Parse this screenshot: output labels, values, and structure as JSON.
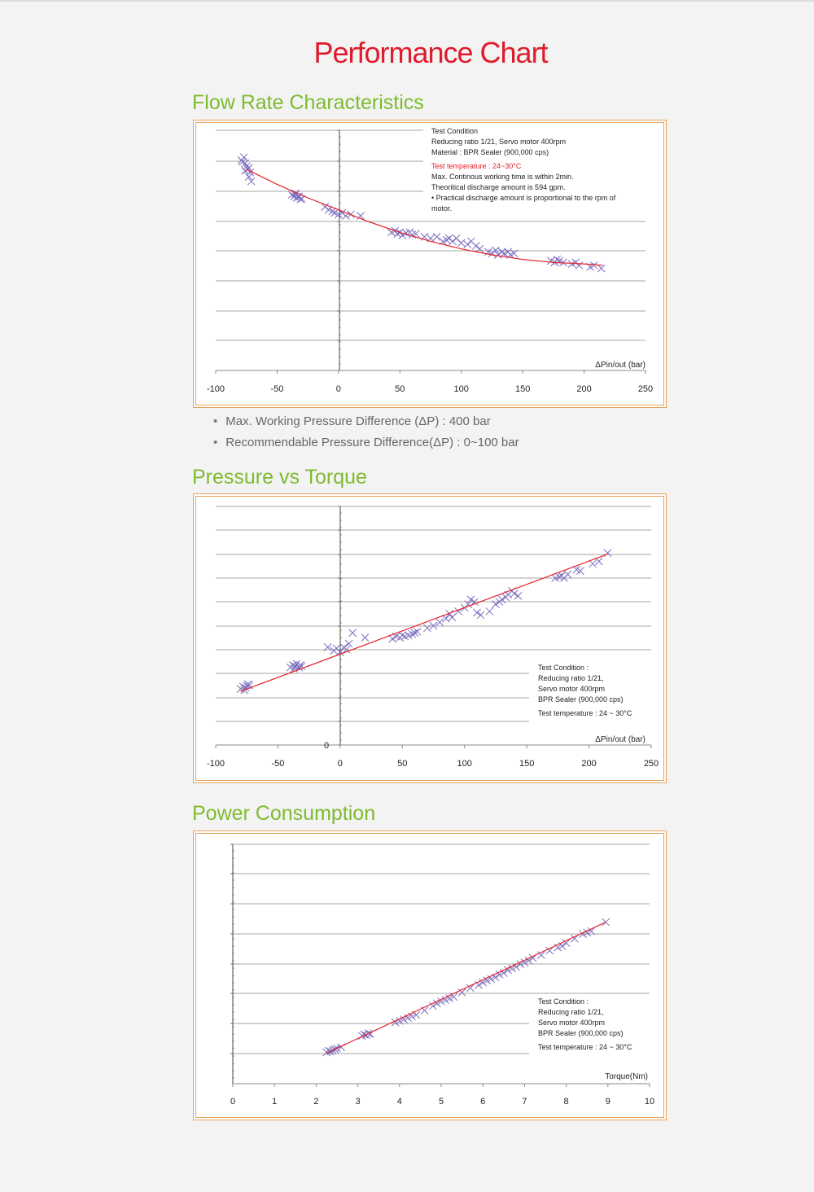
{
  "page": {
    "title": "Performance Chart"
  },
  "sections": [
    {
      "title": "Flow Rate Characteristics"
    },
    {
      "title": "Pressure vs Torque"
    },
    {
      "title": "Power Consumption"
    }
  ],
  "notes": [
    "Max. Working Pressure Difference (ΔP) : 400 bar",
    "Recommendable Pressure Difference(ΔP) : 0~100 bar"
  ],
  "colors": {
    "title": "#e01b2c",
    "section": "#7dbb2f",
    "frame": "#e7a25a",
    "marker": "#7b6fbf",
    "trend": "#e8202a",
    "grid": "#888888"
  },
  "chart_data": [
    {
      "type": "scatter",
      "xlabel": "ΔPin/out (bar)",
      "ylabel": "",
      "xlim": [
        -100,
        250
      ],
      "xticks": [
        -100,
        -50,
        0,
        50,
        100,
        150,
        200,
        250
      ],
      "ylim": [
        0,
        8
      ],
      "grid": true,
      "annotation_lines": [
        {
          "text": "Test Condition",
          "color": "#222222"
        },
        {
          "text": "Reducing ratio 1/21, Servo motor  400rpm",
          "color": "#222222"
        },
        {
          "text": "Material : BPR Sealer (900,000 cps)",
          "color": "#222222"
        },
        {
          "text": "Test temperature : 24~30°C",
          "color": "#e8202a"
        },
        {
          "text": "Max. Continous working time  is within 2min.",
          "color": "#222222"
        },
        {
          "text": "Theoritical discharge amount is 594 gpm.",
          "color": "#222222"
        },
        {
          "text": "• Practical discharge amount is proportional to the rpm of",
          "color": "#222222"
        },
        {
          "text": "   motor.",
          "color": "#222222"
        }
      ],
      "series": [
        {
          "kind": "markers",
          "points": [
            [
              -79,
              7.0
            ],
            [
              -77,
              7.1
            ],
            [
              -76,
              6.9
            ],
            [
              -78,
              6.95
            ],
            [
              -75,
              6.8
            ],
            [
              -74,
              6.7
            ],
            [
              -73,
              6.75
            ],
            [
              -72,
              6.6
            ],
            [
              -76,
              6.65
            ],
            [
              -73,
              6.45
            ],
            [
              -71,
              6.3
            ],
            [
              -38,
              5.85
            ],
            [
              -36,
              5.8
            ],
            [
              -35,
              5.85
            ],
            [
              -34,
              5.75
            ],
            [
              -33,
              5.8
            ],
            [
              -32,
              5.78
            ],
            [
              -31,
              5.7
            ],
            [
              -30,
              5.72
            ],
            [
              -35,
              5.9
            ],
            [
              -11,
              5.45
            ],
            [
              -8,
              5.35
            ],
            [
              -5,
              5.3
            ],
            [
              -3,
              5.25
            ],
            [
              0,
              5.2
            ],
            [
              3,
              5.25
            ],
            [
              6,
              5.15
            ],
            [
              10,
              5.2
            ],
            [
              18,
              5.15
            ],
            [
              43,
              4.6
            ],
            [
              46,
              4.65
            ],
            [
              48,
              4.55
            ],
            [
              50,
              4.6
            ],
            [
              52,
              4.5
            ],
            [
              55,
              4.58
            ],
            [
              58,
              4.6
            ],
            [
              60,
              4.52
            ],
            [
              63,
              4.55
            ],
            [
              70,
              4.45
            ],
            [
              75,
              4.4
            ],
            [
              80,
              4.45
            ],
            [
              85,
              4.3
            ],
            [
              88,
              4.35
            ],
            [
              90,
              4.4
            ],
            [
              93,
              4.3
            ],
            [
              96,
              4.4
            ],
            [
              100,
              4.25
            ],
            [
              105,
              4.2
            ],
            [
              108,
              4.3
            ],
            [
              112,
              4.15
            ],
            [
              115,
              4.05
            ],
            [
              122,
              3.95
            ],
            [
              125,
              3.9
            ],
            [
              128,
              4.0
            ],
            [
              130,
              3.85
            ],
            [
              133,
              3.95
            ],
            [
              135,
              3.9
            ],
            [
              138,
              3.95
            ],
            [
              140,
              3.85
            ],
            [
              143,
              3.9
            ],
            [
              173,
              3.65
            ],
            [
              176,
              3.6
            ],
            [
              178,
              3.7
            ],
            [
              180,
              3.65
            ],
            [
              183,
              3.6
            ],
            [
              190,
              3.55
            ],
            [
              193,
              3.6
            ],
            [
              196,
              3.5
            ],
            [
              205,
              3.45
            ],
            [
              208,
              3.5
            ],
            [
              214,
              3.4
            ]
          ]
        },
        {
          "kind": "trend",
          "points": [
            [
              -75,
              6.7
            ],
            [
              -50,
              6.2
            ],
            [
              -25,
              5.75
            ],
            [
              0,
              5.35
            ],
            [
              25,
              4.95
            ],
            [
              50,
              4.6
            ],
            [
              75,
              4.3
            ],
            [
              100,
              4.05
            ],
            [
              125,
              3.85
            ],
            [
              150,
              3.7
            ],
            [
              175,
              3.6
            ],
            [
              200,
              3.55
            ],
            [
              215,
              3.5
            ]
          ]
        }
      ]
    },
    {
      "type": "scatter",
      "xlabel": "ΔPin/out (bar)",
      "ylabel": "",
      "xlim": [
        -100,
        250
      ],
      "xticks": [
        -100,
        -50,
        0,
        50,
        100,
        150,
        200,
        250
      ],
      "ylim": [
        0,
        10
      ],
      "y0_label": "0",
      "grid": true,
      "annotation_lines": [
        {
          "text": "Test Condition :",
          "color": "#222222"
        },
        {
          "text": "Reducing ratio 1/21,",
          "color": "#222222"
        },
        {
          "text": "Servo motor  400rpm",
          "color": "#222222"
        },
        {
          "text": "BPR Sealer (900,000 cps)",
          "color": "#222222"
        },
        {
          "text": "Test temperature : 24 ~ 30°C",
          "color": "#222222"
        }
      ],
      "series": [
        {
          "kind": "markers",
          "points": [
            [
              -80,
              2.35
            ],
            [
              -78,
              2.45
            ],
            [
              -76,
              2.4
            ],
            [
              -75,
              2.5
            ],
            [
              -74,
              2.55
            ],
            [
              -77,
              2.3
            ],
            [
              -73,
              2.5
            ],
            [
              -40,
              3.25
            ],
            [
              -38,
              3.35
            ],
            [
              -36,
              3.3
            ],
            [
              -35,
              3.4
            ],
            [
              -33,
              3.25
            ],
            [
              -32,
              3.35
            ],
            [
              -31,
              3.3
            ],
            [
              -37,
              3.2
            ],
            [
              -10,
              4.1
            ],
            [
              -5,
              3.95
            ],
            [
              -3,
              4.05
            ],
            [
              0,
              3.9
            ],
            [
              3,
              4.1
            ],
            [
              5,
              4.0
            ],
            [
              7,
              4.25
            ],
            [
              10,
              4.7
            ],
            [
              20,
              4.5
            ],
            [
              42,
              4.45
            ],
            [
              45,
              4.55
            ],
            [
              48,
              4.5
            ],
            [
              50,
              4.6
            ],
            [
              52,
              4.55
            ],
            [
              55,
              4.6
            ],
            [
              58,
              4.65
            ],
            [
              60,
              4.7
            ],
            [
              62,
              4.75
            ],
            [
              70,
              4.9
            ],
            [
              75,
              5.0
            ],
            [
              80,
              5.15
            ],
            [
              85,
              5.3
            ],
            [
              88,
              5.5
            ],
            [
              90,
              5.35
            ],
            [
              95,
              5.6
            ],
            [
              100,
              5.75
            ],
            [
              103,
              5.9
            ],
            [
              105,
              6.1
            ],
            [
              108,
              6.0
            ],
            [
              110,
              5.55
            ],
            [
              113,
              5.45
            ],
            [
              120,
              5.6
            ],
            [
              125,
              5.9
            ],
            [
              128,
              6.0
            ],
            [
              130,
              6.1
            ],
            [
              133,
              6.2
            ],
            [
              135,
              6.3
            ],
            [
              138,
              6.45
            ],
            [
              140,
              6.35
            ],
            [
              143,
              6.25
            ],
            [
              173,
              7.0
            ],
            [
              176,
              7.05
            ],
            [
              178,
              7.1
            ],
            [
              180,
              7.0
            ],
            [
              183,
              7.15
            ],
            [
              190,
              7.35
            ],
            [
              193,
              7.3
            ],
            [
              203,
              7.6
            ],
            [
              208,
              7.7
            ],
            [
              215,
              8.05
            ]
          ]
        },
        {
          "kind": "trend",
          "points": [
            [
              -80,
              2.25
            ],
            [
              215,
              8.0
            ]
          ]
        }
      ]
    },
    {
      "type": "scatter",
      "xlabel": "Torque(Nm)",
      "ylabel": "",
      "xlim": [
        0,
        10
      ],
      "xticks": [
        0,
        1,
        2,
        3,
        4,
        5,
        6,
        7,
        8,
        9,
        10
      ],
      "ylim": [
        0,
        8
      ],
      "grid": true,
      "annotation_lines": [
        {
          "text": "Test Condition :",
          "color": "#222222"
        },
        {
          "text": "Reducing ratio 1/21,",
          "color": "#222222"
        },
        {
          "text": "Servo motor  400rpm",
          "color": "#222222"
        },
        {
          "text": "BPR Sealer (900,000 cps)",
          "color": "#222222"
        },
        {
          "text": "Test temperature : 24 ~ 30°C",
          "color": "#222222"
        }
      ],
      "series": [
        {
          "kind": "markers",
          "points": [
            [
              2.25,
              1.05
            ],
            [
              2.3,
              1.1
            ],
            [
              2.35,
              1.08
            ],
            [
              2.4,
              1.12
            ],
            [
              2.45,
              1.15
            ],
            [
              2.5,
              1.18
            ],
            [
              2.6,
              1.22
            ],
            [
              3.1,
              1.6
            ],
            [
              3.15,
              1.65
            ],
            [
              3.2,
              1.62
            ],
            [
              3.25,
              1.68
            ],
            [
              3.3,
              1.66
            ],
            [
              3.9,
              2.05
            ],
            [
              4.0,
              2.1
            ],
            [
              4.1,
              2.15
            ],
            [
              4.2,
              2.2
            ],
            [
              4.3,
              2.25
            ],
            [
              4.4,
              2.3
            ],
            [
              4.6,
              2.45
            ],
            [
              4.8,
              2.6
            ],
            [
              4.9,
              2.68
            ],
            [
              5.0,
              2.75
            ],
            [
              5.1,
              2.8
            ],
            [
              5.2,
              2.85
            ],
            [
              5.3,
              2.9
            ],
            [
              5.5,
              3.05
            ],
            [
              5.7,
              3.2
            ],
            [
              5.9,
              3.3
            ],
            [
              6.0,
              3.38
            ],
            [
              6.1,
              3.45
            ],
            [
              6.2,
              3.5
            ],
            [
              6.3,
              3.55
            ],
            [
              6.4,
              3.65
            ],
            [
              6.5,
              3.7
            ],
            [
              6.6,
              3.8
            ],
            [
              6.7,
              3.85
            ],
            [
              6.8,
              3.9
            ],
            [
              6.9,
              4.0
            ],
            [
              7.0,
              4.05
            ],
            [
              7.1,
              4.12
            ],
            [
              7.2,
              4.2
            ],
            [
              7.4,
              4.3
            ],
            [
              7.6,
              4.45
            ],
            [
              7.8,
              4.55
            ],
            [
              7.9,
              4.6
            ],
            [
              8.0,
              4.7
            ],
            [
              8.2,
              4.85
            ],
            [
              8.4,
              5.0
            ],
            [
              8.5,
              5.05
            ],
            [
              8.6,
              5.1
            ],
            [
              8.95,
              5.4
            ]
          ]
        },
        {
          "kind": "trend",
          "points": [
            [
              2.25,
              1.02
            ],
            [
              8.95,
              5.4
            ]
          ]
        }
      ]
    }
  ]
}
